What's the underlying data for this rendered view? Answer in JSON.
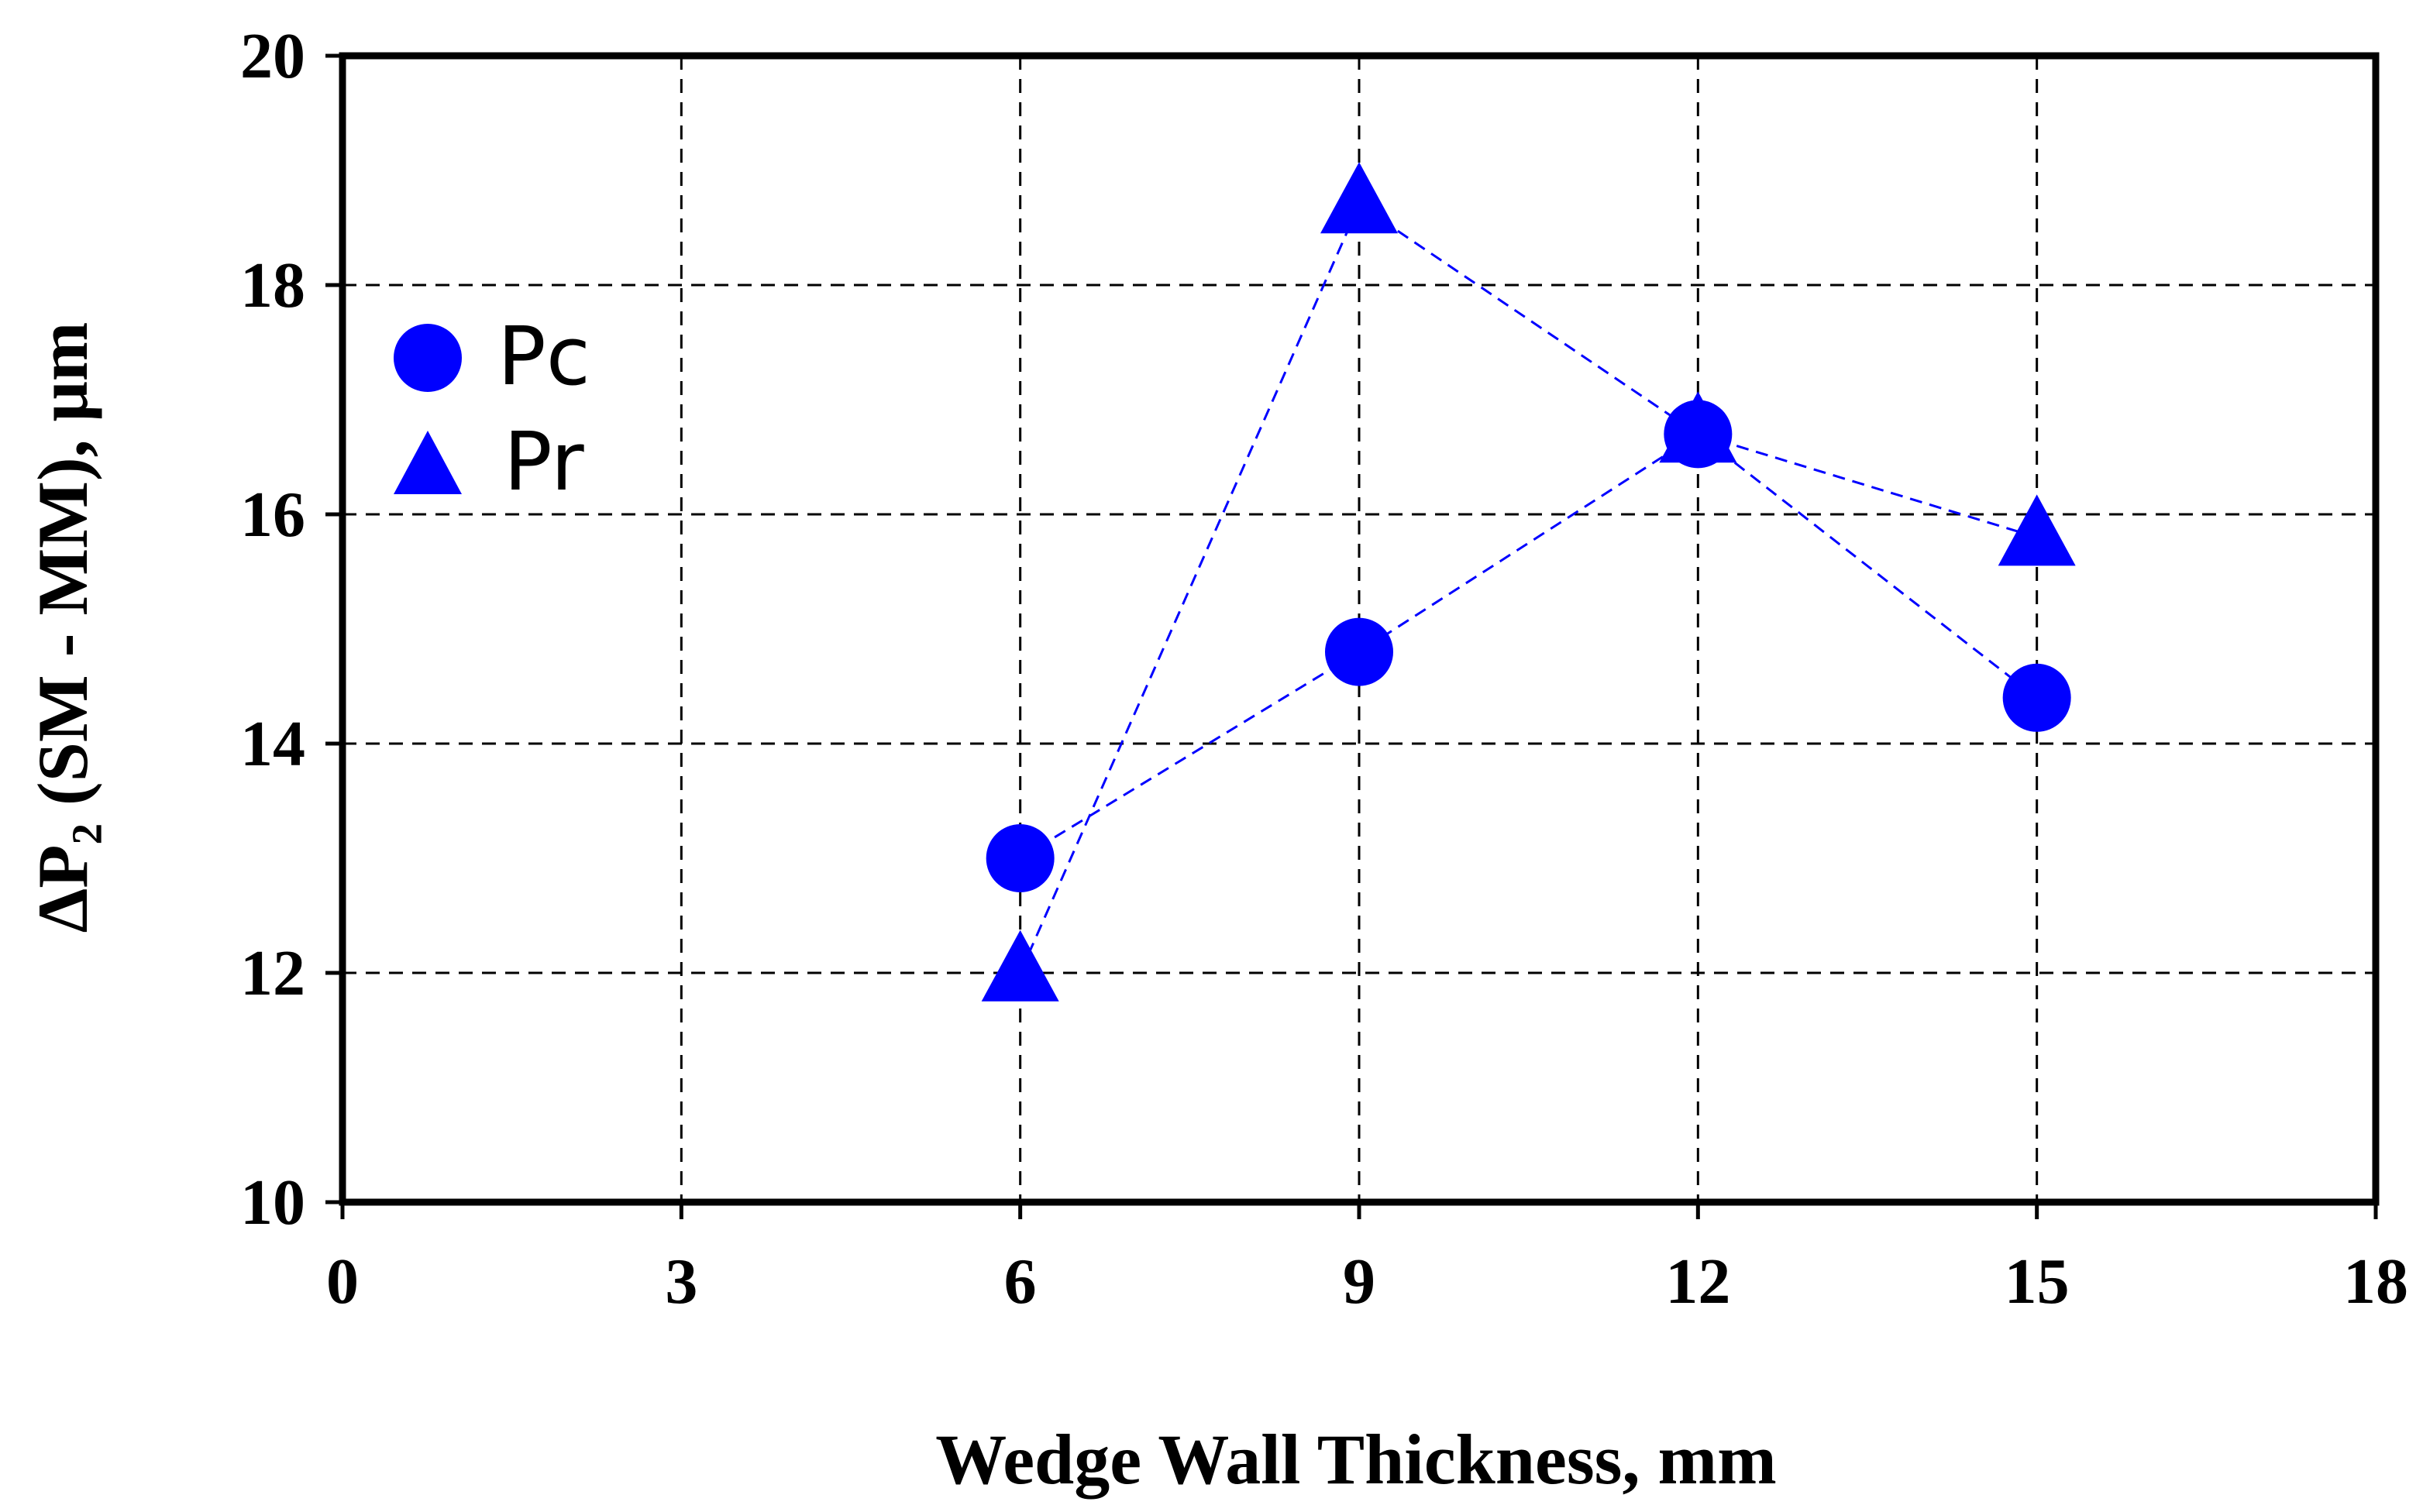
{
  "chart_data": {
    "type": "scatter",
    "title": "",
    "xlabel": "Wedge Wall Thickness, mm",
    "ylabel": "ΔP₂ (SM - MM), μm",
    "xlim": [
      0,
      18
    ],
    "ylim": [
      10,
      20
    ],
    "xticks": [
      0,
      3,
      6,
      9,
      12,
      15,
      18
    ],
    "yticks": [
      10,
      12,
      14,
      16,
      18,
      20
    ],
    "xtick_labels": [
      "0",
      "3",
      "6",
      "9",
      "12",
      "15",
      "18"
    ],
    "ytick_labels": [
      "10",
      "12",
      "14",
      "16",
      "18",
      "20"
    ],
    "grid": true,
    "legend_position": "upper-left",
    "x": [
      6,
      9,
      12,
      15
    ],
    "series": [
      {
        "name": "Pc",
        "marker": "circle",
        "color": "#0000FF",
        "values": [
          13.0,
          14.8,
          16.7,
          14.4
        ]
      },
      {
        "name": "Pr",
        "marker": "triangle",
        "color": "#0000FF",
        "values": [
          12.0,
          18.7,
          16.7,
          15.8
        ]
      }
    ]
  }
}
